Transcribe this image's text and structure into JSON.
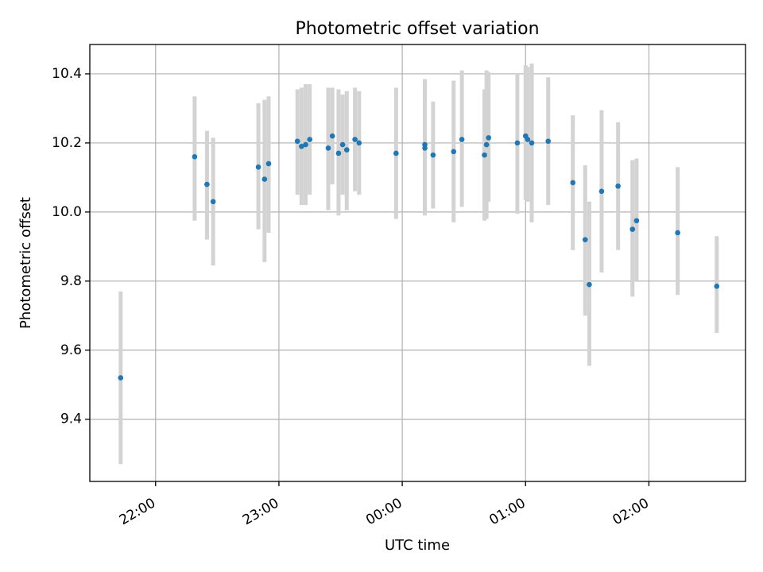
{
  "chart_data": {
    "type": "scatter",
    "title": "Photometric offset variation",
    "xlabel": "UTC time",
    "ylabel": "Photometric offset",
    "x_unit": "UTC time (HH:MM)",
    "xlim": [
      "21:28",
      "02:47"
    ],
    "ylim": [
      9.22,
      10.485
    ],
    "grid": true,
    "x_ticks": [
      "22:00",
      "23:00",
      "00:00",
      "01:00",
      "02:00"
    ],
    "y_ticks": [
      9.4,
      9.6,
      9.8,
      10.0,
      10.2,
      10.4
    ],
    "y_tick_labels": [
      "9.4",
      "9.6",
      "9.8",
      "10.0",
      "10.2",
      "10.4"
    ],
    "colors": {
      "point": "#1f77b4",
      "errorbar": "#d3d3d3"
    },
    "points": [
      {
        "x": "21:43",
        "y": 9.52,
        "ylo": 9.27,
        "yhi": 9.77
      },
      {
        "x": "22:19",
        "y": 10.16,
        "ylo": 9.975,
        "yhi": 10.335
      },
      {
        "x": "22:25",
        "y": 10.08,
        "ylo": 9.92,
        "yhi": 10.235
      },
      {
        "x": "22:28",
        "y": 10.03,
        "ylo": 9.845,
        "yhi": 10.215
      },
      {
        "x": "22:50",
        "y": 10.13,
        "ylo": 9.95,
        "yhi": 10.315
      },
      {
        "x": "22:53",
        "y": 10.095,
        "ylo": 9.855,
        "yhi": 10.325
      },
      {
        "x": "22:55",
        "y": 10.14,
        "ylo": 9.94,
        "yhi": 10.335
      },
      {
        "x": "23:09",
        "y": 10.205,
        "ylo": 10.05,
        "yhi": 10.355
      },
      {
        "x": "23:11",
        "y": 10.19,
        "ylo": 10.02,
        "yhi": 10.36
      },
      {
        "x": "23:13",
        "y": 10.195,
        "ylo": 10.02,
        "yhi": 10.37
      },
      {
        "x": "23:15",
        "y": 10.21,
        "ylo": 10.05,
        "yhi": 10.37
      },
      {
        "x": "23:24",
        "y": 10.185,
        "ylo": 10.005,
        "yhi": 10.36
      },
      {
        "x": "23:26",
        "y": 10.22,
        "ylo": 10.08,
        "yhi": 10.36
      },
      {
        "x": "23:29",
        "y": 10.17,
        "ylo": 9.99,
        "yhi": 10.355
      },
      {
        "x": "23:31",
        "y": 10.195,
        "ylo": 10.05,
        "yhi": 10.34
      },
      {
        "x": "23:33",
        "y": 10.18,
        "ylo": 10.005,
        "yhi": 10.35
      },
      {
        "x": "23:37",
        "y": 10.21,
        "ylo": 10.06,
        "yhi": 10.36
      },
      {
        "x": "23:39",
        "y": 10.2,
        "ylo": 10.05,
        "yhi": 10.35
      },
      {
        "x": "23:57",
        "y": 10.17,
        "ylo": 9.98,
        "yhi": 10.36
      },
      {
        "x": "00:11",
        "y": 10.185,
        "ylo": 9.99,
        "yhi": 10.385
      },
      {
        "x": "00:11",
        "y": 10.195,
        "ylo": 10.0,
        "yhi": 10.385
      },
      {
        "x": "00:15",
        "y": 10.165,
        "ylo": 10.01,
        "yhi": 10.32
      },
      {
        "x": "00:25",
        "y": 10.175,
        "ylo": 9.97,
        "yhi": 10.38
      },
      {
        "x": "00:29",
        "y": 10.21,
        "ylo": 10.015,
        "yhi": 10.41
      },
      {
        "x": "00:40",
        "y": 10.165,
        "ylo": 9.975,
        "yhi": 10.355
      },
      {
        "x": "00:41",
        "y": 10.195,
        "ylo": 9.98,
        "yhi": 10.41
      },
      {
        "x": "00:42",
        "y": 10.215,
        "ylo": 10.03,
        "yhi": 10.405
      },
      {
        "x": "00:56",
        "y": 10.2,
        "ylo": 9.995,
        "yhi": 10.4
      },
      {
        "x": "01:00",
        "y": 10.22,
        "ylo": 10.035,
        "yhi": 10.425
      },
      {
        "x": "01:01",
        "y": 10.21,
        "ylo": 10.03,
        "yhi": 10.42
      },
      {
        "x": "01:03",
        "y": 10.2,
        "ylo": 9.97,
        "yhi": 10.43
      },
      {
        "x": "01:11",
        "y": 10.205,
        "ylo": 10.02,
        "yhi": 10.39
      },
      {
        "x": "01:23",
        "y": 10.085,
        "ylo": 9.89,
        "yhi": 10.28
      },
      {
        "x": "01:29",
        "y": 9.92,
        "ylo": 9.7,
        "yhi": 10.135
      },
      {
        "x": "01:31",
        "y": 9.79,
        "ylo": 9.555,
        "yhi": 10.03
      },
      {
        "x": "01:37",
        "y": 10.06,
        "ylo": 9.825,
        "yhi": 10.295
      },
      {
        "x": "01:45",
        "y": 10.075,
        "ylo": 9.89,
        "yhi": 10.26
      },
      {
        "x": "01:52",
        "y": 9.95,
        "ylo": 9.755,
        "yhi": 10.15
      },
      {
        "x": "01:54",
        "y": 9.975,
        "ylo": 9.8,
        "yhi": 10.155
      },
      {
        "x": "02:14",
        "y": 9.94,
        "ylo": 9.76,
        "yhi": 10.13
      },
      {
        "x": "02:33",
        "y": 9.785,
        "ylo": 9.65,
        "yhi": 9.93
      }
    ]
  }
}
